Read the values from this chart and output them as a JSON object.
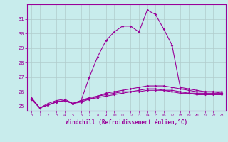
{
  "xlabel": "Windchill (Refroidissement éolien,°C)",
  "background_color": "#c8ecec",
  "line_color": "#990099",
  "grid_color": "#b0cccc",
  "xlim": [
    -0.5,
    23.5
  ],
  "ylim": [
    24.7,
    32.0
  ],
  "yticks": [
    25,
    26,
    27,
    28,
    29,
    30,
    31
  ],
  "xticks": [
    0,
    1,
    2,
    3,
    4,
    5,
    6,
    7,
    8,
    9,
    10,
    11,
    12,
    13,
    14,
    15,
    16,
    17,
    18,
    19,
    20,
    21,
    22,
    23
  ],
  "hours": [
    0,
    1,
    2,
    3,
    4,
    5,
    6,
    7,
    8,
    9,
    10,
    11,
    12,
    13,
    14,
    15,
    16,
    17,
    18,
    19,
    20,
    21,
    22,
    23
  ],
  "line1": [
    25.6,
    24.9,
    25.2,
    25.4,
    25.5,
    25.2,
    25.4,
    27.0,
    28.4,
    29.5,
    30.1,
    30.5,
    30.5,
    30.1,
    31.6,
    31.3,
    30.3,
    29.2,
    26.3,
    26.2,
    26.1,
    26.0,
    26.0,
    26.0
  ],
  "line2": [
    25.5,
    24.9,
    25.1,
    25.3,
    25.4,
    25.2,
    25.4,
    25.6,
    25.7,
    25.9,
    26.0,
    26.1,
    26.2,
    26.3,
    26.4,
    26.4,
    26.4,
    26.3,
    26.2,
    26.1,
    26.0,
    26.0,
    26.0,
    25.9
  ],
  "line3": [
    25.5,
    24.9,
    25.1,
    25.3,
    25.4,
    25.2,
    25.3,
    25.5,
    25.6,
    25.7,
    25.8,
    25.9,
    26.0,
    26.0,
    26.1,
    26.1,
    26.1,
    26.0,
    25.9,
    25.9,
    25.8,
    25.8,
    25.8,
    25.8
  ],
  "line4": [
    25.5,
    24.9,
    25.1,
    25.3,
    25.4,
    25.2,
    25.4,
    25.5,
    25.7,
    25.8,
    25.9,
    26.0,
    26.0,
    26.1,
    26.2,
    26.2,
    26.1,
    26.1,
    26.0,
    25.9,
    25.9,
    25.9,
    25.9,
    25.9
  ]
}
